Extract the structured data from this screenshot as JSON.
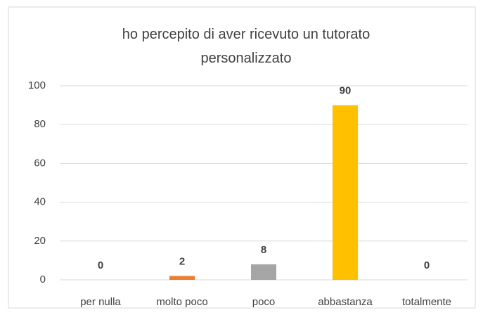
{
  "chart_data": {
    "type": "bar",
    "title": "ho percepito di aver ricevuto un tutorato personalizzato",
    "categories": [
      "per nulla",
      "molto poco",
      "poco",
      "abbastanza",
      "totalmente"
    ],
    "values": [
      0,
      2,
      8,
      90,
      0
    ],
    "colors": [
      "#4472c4",
      "#ed7d31",
      "#a5a5a5",
      "#ffc000",
      "#5b9bd5"
    ],
    "ylim": [
      0,
      100
    ],
    "yticks": [
      0,
      20,
      40,
      60,
      80,
      100
    ],
    "grid": true
  }
}
